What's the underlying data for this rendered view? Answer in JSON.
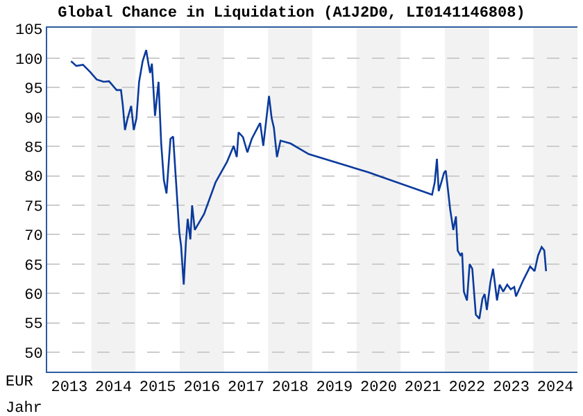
{
  "chart_data": {
    "type": "line",
    "title": "Global Chance in Liquidation (A1J2D0, LI0141146808)",
    "xlabel": "Jahr",
    "ylabel": "EUR",
    "x": [
      2013.54,
      2013.66,
      2013.81,
      2013.97,
      2014.12,
      2014.28,
      2014.4,
      2014.57,
      2014.67,
      2014.71,
      2014.76,
      2014.82,
      2014.9,
      2014.96,
      2015.02,
      2015.08,
      2015.16,
      2015.24,
      2015.29,
      2015.33,
      2015.37,
      2015.44,
      2015.52,
      2015.58,
      2015.64,
      2015.7,
      2015.79,
      2015.85,
      2015.93,
      2015.99,
      2016.03,
      2016.09,
      2016.14,
      2016.18,
      2016.24,
      2016.28,
      2016.34,
      2016.55,
      2016.81,
      2017.07,
      2017.22,
      2017.29,
      2017.33,
      2017.43,
      2017.53,
      2017.63,
      2017.79,
      2017.82,
      2017.89,
      2017.95,
      2018.02,
      2018.08,
      2018.13,
      2018.2,
      2018.28,
      2018.51,
      2018.92,
      2020.27,
      2021.71,
      2021.77,
      2021.82,
      2021.86,
      2021.92,
      2021.98,
      2022.02,
      2022.06,
      2022.12,
      2022.19,
      2022.25,
      2022.29,
      2022.35,
      2022.39,
      2022.43,
      2022.5,
      2022.56,
      2022.62,
      2022.7,
      2022.78,
      2022.85,
      2022.9,
      2022.95,
      2023.03,
      2023.09,
      2023.18,
      2023.24,
      2023.32,
      2023.41,
      2023.49,
      2023.57,
      2023.61,
      2023.77,
      2023.93,
      2024.03,
      2024.11,
      2024.19,
      2024.25,
      2024.29
    ],
    "series": [
      {
        "color": "#0a3a9c",
        "values": [
          99.5,
          98.7,
          98.9,
          97.7,
          96.4,
          96.0,
          96.1,
          94.6,
          94.6,
          92.1,
          87.8,
          89.8,
          91.9,
          87.8,
          89.8,
          96.0,
          99.5,
          101.4,
          99.1,
          97.5,
          99.1,
          90.2,
          96.0,
          85.5,
          79.3,
          77.0,
          86.3,
          86.7,
          77.4,
          70.4,
          68.1,
          61.5,
          68.8,
          72.7,
          69.2,
          75.0,
          70.8,
          73.5,
          78.9,
          82.4,
          85.1,
          83.2,
          87.4,
          86.6,
          84.0,
          86.3,
          88.6,
          89.0,
          85.1,
          89.0,
          93.6,
          89.8,
          88.2,
          83.2,
          86.0,
          85.5,
          83.7,
          80.6,
          76.8,
          78.9,
          82.9,
          77.4,
          78.9,
          80.5,
          80.9,
          78.3,
          74.3,
          70.8,
          73.1,
          67.3,
          66.5,
          66.9,
          60.3,
          58.8,
          65.0,
          64.2,
          56.4,
          55.7,
          59.1,
          59.9,
          57.2,
          61.9,
          64.2,
          58.8,
          61.5,
          60.3,
          61.5,
          60.7,
          61.1,
          59.5,
          62.2,
          64.6,
          63.8,
          66.5,
          67.9,
          67.3,
          63.8
        ]
      }
    ],
    "xlim": [
      2013,
      2025
    ],
    "ylim": [
      46.7,
      105.2
    ],
    "xticks": [
      {
        "value": 2013.5,
        "label": "2013"
      },
      {
        "value": 2014.5,
        "label": "2014"
      },
      {
        "value": 2015.5,
        "label": "2015"
      },
      {
        "value": 2016.5,
        "label": "2016"
      },
      {
        "value": 2017.5,
        "label": "2017"
      },
      {
        "value": 2018.5,
        "label": "2018"
      },
      {
        "value": 2019.5,
        "label": "2019"
      },
      {
        "value": 2020.5,
        "label": "2020"
      },
      {
        "value": 2021.5,
        "label": "2021"
      },
      {
        "value": 2022.5,
        "label": "2022"
      },
      {
        "value": 2023.5,
        "label": "2023"
      },
      {
        "value": 2024.5,
        "label": "2024"
      }
    ],
    "yticks": [
      50,
      55,
      60,
      65,
      70,
      75,
      80,
      85,
      90,
      95,
      100,
      105
    ],
    "bands": [
      {
        "axis": "x",
        "from": 2014,
        "to": 2015,
        "color": "#f2f2f2"
      },
      {
        "axis": "x",
        "from": 2016,
        "to": 2017,
        "color": "#f2f2f2"
      },
      {
        "axis": "x",
        "from": 2018,
        "to": 2019,
        "color": "#f2f2f2"
      },
      {
        "axis": "x",
        "from": 2020,
        "to": 2021,
        "color": "#f2f2f2"
      },
      {
        "axis": "x",
        "from": 2022,
        "to": 2023,
        "color": "#f2f2f2"
      },
      {
        "axis": "x",
        "from": 2024,
        "to": 2025,
        "color": "#f2f2f2"
      }
    ],
    "grid": "y",
    "legend": false,
    "marker": "none",
    "line_style": "solid"
  }
}
